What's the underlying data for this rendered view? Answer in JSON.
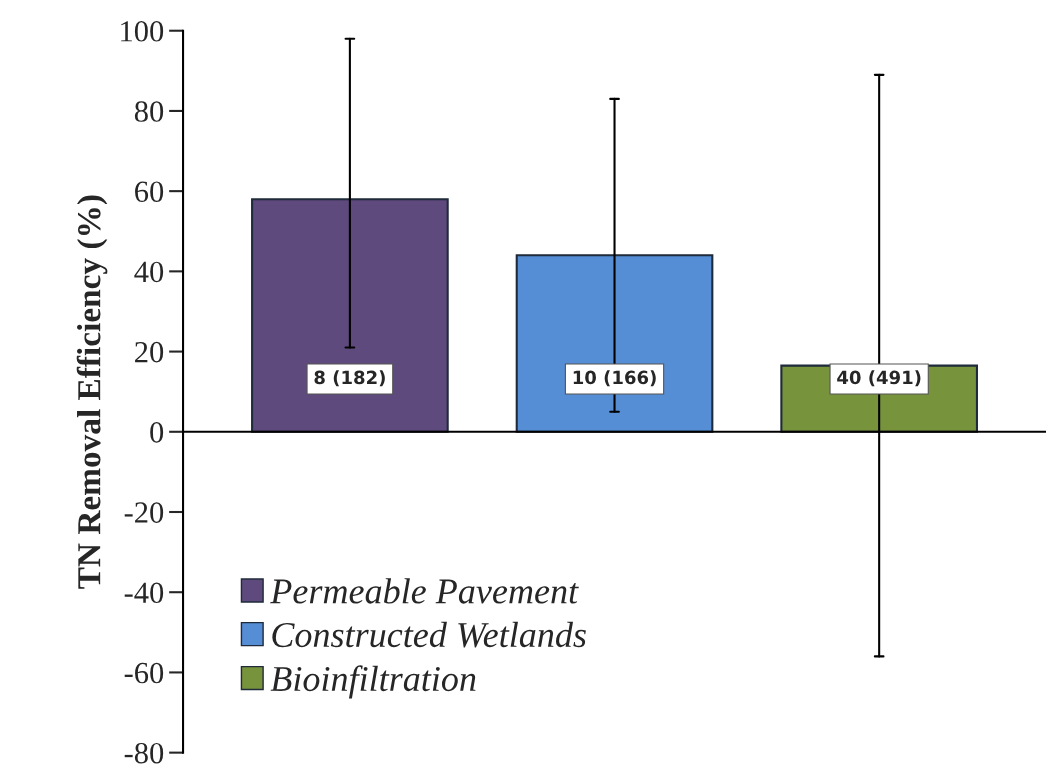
{
  "chart_data": {
    "type": "bar",
    "ylabel": "TN Removal Efficiency (%)",
    "categories": [
      null
    ],
    "series": [
      {
        "name": "Permeable Pavement",
        "color": "#5e4a7d",
        "values": [
          58
        ],
        "errors": [
          [
            21,
            98
          ]
        ]
      },
      {
        "name": "Constructed Wetlands",
        "color": "#558ed5",
        "values": [
          44
        ],
        "errors": [
          [
            5,
            83
          ]
        ]
      },
      {
        "name": "Bioinfiltration",
        "color": "#77933c",
        "values": [
          16.5
        ],
        "errors": [
          [
            -56,
            89
          ]
        ]
      }
    ],
    "annotations": [
      "8 (182)",
      "10 (166)",
      "40 (491)"
    ],
    "ylim": [
      -80,
      100
    ],
    "yticks": [
      -80,
      -60,
      -40,
      -20,
      0,
      20,
      40,
      60,
      80,
      100
    ],
    "legend": "bottom left"
  }
}
